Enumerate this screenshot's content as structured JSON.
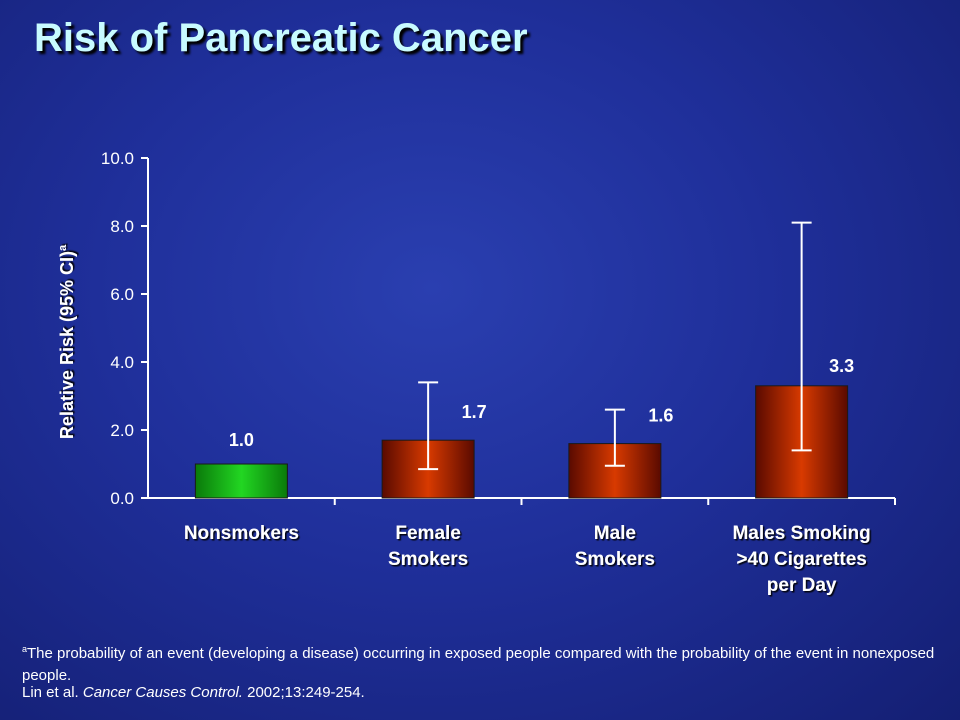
{
  "title": "Risk of Pancreatic Cancer",
  "footnote": {
    "marker": "a",
    "text": "The probability of an event (developing a disease) occurring in exposed people compared with the probability of the event in nonexposed people."
  },
  "citation": {
    "authors": "Lin et al. ",
    "journal": "Cancer Causes Control.",
    "details": " 2002;13:249-254."
  },
  "colors": {
    "nonsmoker_bar": "#18c018",
    "smoker_bar": "#cc3300",
    "label_text": "#ffffff"
  },
  "chart_data": {
    "type": "bar",
    "ylabel": "Relative Risk (95% CI)",
    "ylabel_superscript": "a",
    "ylim": [
      0,
      10
    ],
    "yticks": [
      "0.0",
      "2.0",
      "4.0",
      "6.0",
      "8.0",
      "10.0"
    ],
    "categories": [
      [
        "Nonsmokers"
      ],
      [
        "Female",
        "Smokers"
      ],
      [
        "Male",
        "Smokers"
      ],
      [
        "Males Smoking",
        ">40 Cigarettes",
        "per Day"
      ]
    ],
    "values": [
      1.0,
      1.7,
      1.6,
      3.3
    ],
    "value_labels": [
      "1.0",
      "1.7",
      "1.6",
      "3.3"
    ],
    "ci_lower": [
      null,
      0.85,
      0.95,
      1.4
    ],
    "ci_upper": [
      null,
      3.4,
      2.6,
      8.1
    ],
    "grid": false
  }
}
